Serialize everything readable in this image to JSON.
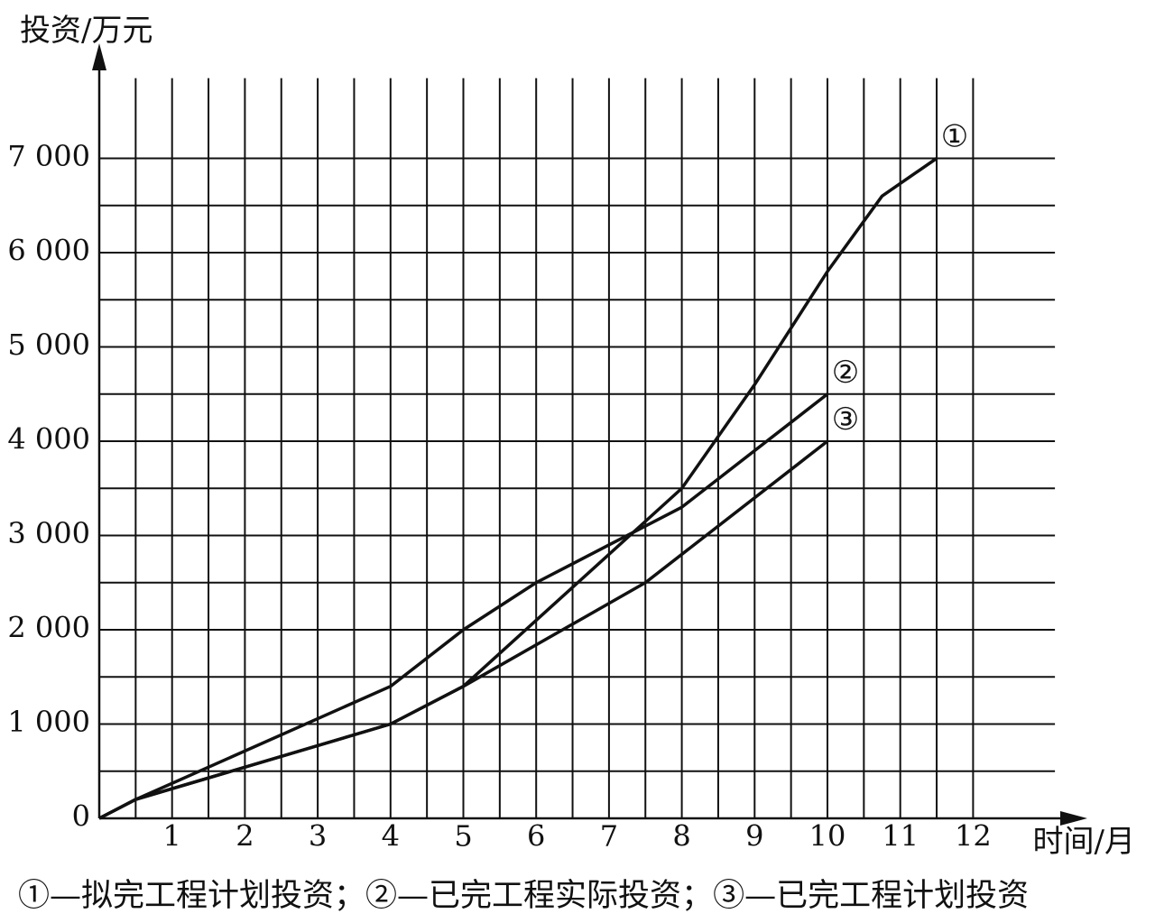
{
  "chart_data": {
    "type": "line",
    "y_label": "投资/万元",
    "x_label": "时间/月",
    "xlim": [
      0,
      13
    ],
    "ylim": [
      0,
      7850
    ],
    "xticks": [
      1,
      2,
      3,
      4,
      5,
      6,
      7,
      8,
      9,
      10,
      11,
      12
    ],
    "yticks": [
      0,
      {
        "value": 1000,
        "label": "1 000"
      },
      {
        "value": 2000,
        "label": "2 000"
      },
      {
        "value": 3000,
        "label": "3 000"
      },
      {
        "value": 4000,
        "label": "4 000"
      },
      {
        "value": 5000,
        "label": "5 000"
      },
      {
        "value": 6000,
        "label": "6 000"
      },
      {
        "value": 7000,
        "label": "7 000"
      }
    ],
    "xgrid": [
      0.5,
      1,
      1.5,
      2,
      2.5,
      3,
      3.5,
      4,
      4.5,
      5,
      5.5,
      6,
      6.5,
      7,
      7.5,
      8,
      8.5,
      9,
      9.5,
      10,
      10.5,
      11,
      11.5,
      12
    ],
    "ygrid": [
      500,
      1000,
      1500,
      2000,
      2500,
      3000,
      3500,
      4000,
      4500,
      5000,
      5500,
      6000,
      6500,
      7000
    ],
    "grid": true,
    "legend_separator": "；",
    "series": [
      {
        "name": "①—拟完工程计划投资",
        "label": "①",
        "color": "#111111",
        "x": [
          0,
          0.5,
          4,
          5,
          8,
          9,
          10,
          10.75,
          11.5
        ],
        "values": [
          0,
          200,
          1000,
          1400,
          3500,
          4600,
          5800,
          6600,
          7000
        ]
      },
      {
        "name": "②—已完工程实际投资",
        "label": "②",
        "color": "#111111",
        "x": [
          0,
          0.5,
          4,
          5,
          6,
          7,
          8,
          10
        ],
        "values": [
          0,
          200,
          1400,
          2000,
          2500,
          2900,
          3300,
          4500
        ]
      },
      {
        "name": "③—已完工程计划投资",
        "label": "③",
        "color": "#111111",
        "x": [
          0,
          0.5,
          4,
          5,
          7.5,
          10
        ],
        "values": [
          0,
          200,
          1000,
          1400,
          2500,
          4000
        ]
      }
    ]
  }
}
